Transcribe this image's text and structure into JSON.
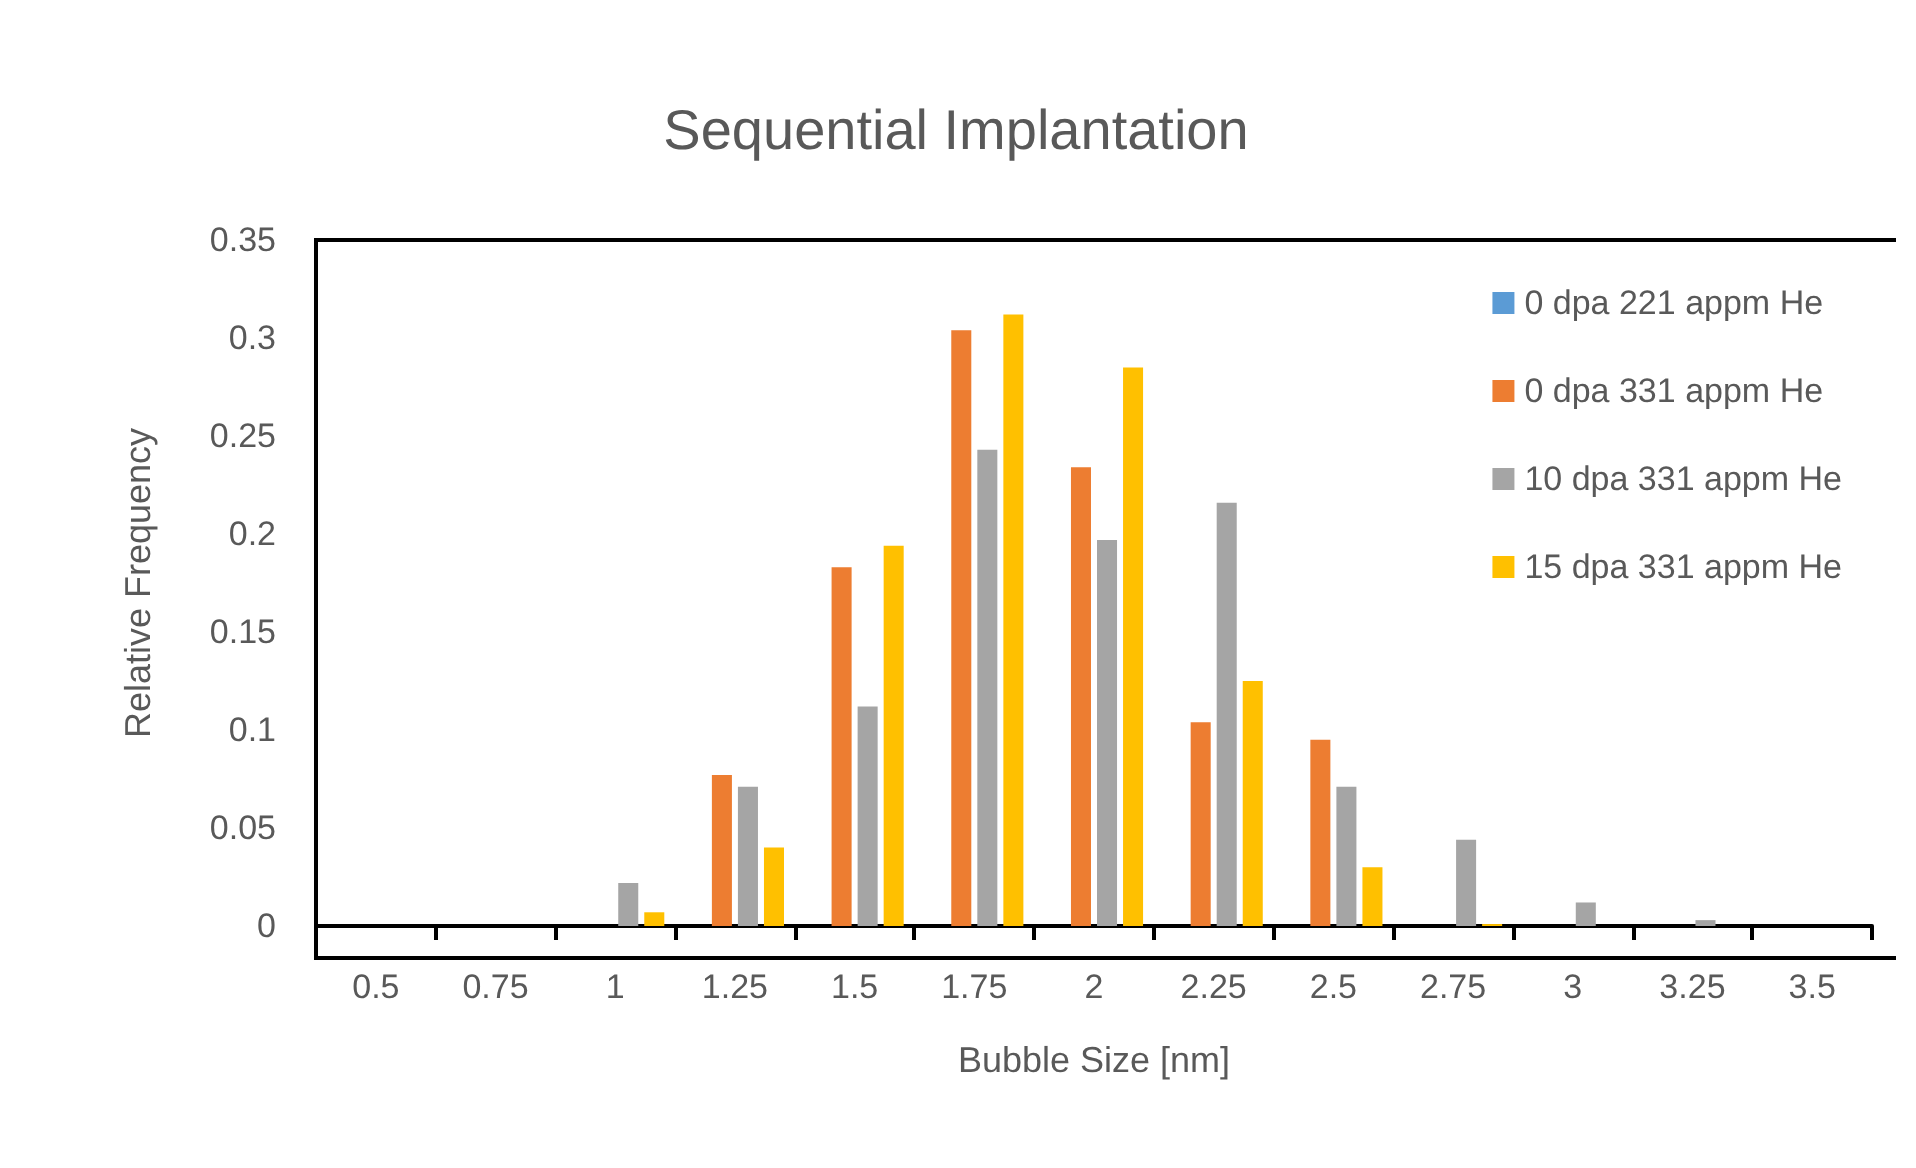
{
  "chart_data": {
    "type": "bar",
    "title": "Sequential Implantation",
    "xlabel": "Bubble Size [nm]",
    "ylabel": "Relative Frequency",
    "categories": [
      "0.5",
      "0.75",
      "1",
      "1.25",
      "1.5",
      "1.75",
      "2",
      "2.25",
      "2.5",
      "2.75",
      "3",
      "3.25",
      "3.5"
    ],
    "series": [
      {
        "name": "0 dpa 221 appm He",
        "color": "#5b9bd5",
        "values": [
          0,
          0,
          0,
          0,
          0,
          0,
          0,
          0,
          0,
          0,
          0,
          0,
          0
        ]
      },
      {
        "name": "0 dpa 331 appm He",
        "color": "#ed7d31",
        "values": [
          0,
          0,
          0,
          0.077,
          0.183,
          0.304,
          0.234,
          0.104,
          0.095,
          0,
          0,
          0,
          0
        ]
      },
      {
        "name": "10 dpa 331 appm He",
        "color": "#a5a5a5",
        "values": [
          0,
          0,
          0.022,
          0.071,
          0.112,
          0.243,
          0.197,
          0.216,
          0.071,
          0.044,
          0.012,
          0.003,
          0
        ]
      },
      {
        "name": "15 dpa 331 appm He",
        "color": "#ffc000",
        "values": [
          0,
          0,
          0.007,
          0.04,
          0.194,
          0.312,
          0.285,
          0.125,
          0.03,
          0.001,
          0,
          0,
          0
        ]
      }
    ],
    "ylim": [
      0,
      0.35
    ],
    "yticks": [
      0,
      0.05,
      0.1,
      0.15,
      0.2,
      0.25,
      0.3,
      0.35
    ],
    "grid": false,
    "legend": "top right"
  }
}
